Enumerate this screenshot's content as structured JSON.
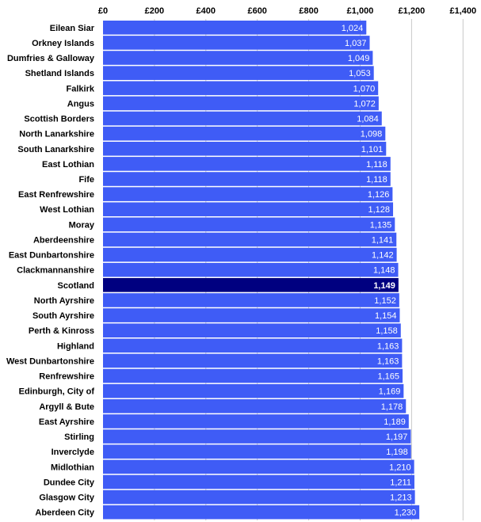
{
  "chart_data": {
    "type": "bar",
    "orientation": "horizontal",
    "title": "",
    "xlabel": "",
    "ylabel": "",
    "xlim": [
      0,
      1400
    ],
    "x_ticks": [
      0,
      200,
      400,
      600,
      800,
      1000,
      1200,
      1400
    ],
    "x_tick_labels": [
      "£0",
      "£200",
      "£400",
      "£600",
      "£800",
      "£1,000",
      "£1,200",
      "£1,400"
    ],
    "axis_position": "top",
    "grid": true,
    "legend": "none",
    "categories": [
      "Eilean Siar",
      "Orkney Islands",
      "Dumfries & Galloway",
      "Shetland Islands",
      "Falkirk",
      "Angus",
      "Scottish Borders",
      "North Lanarkshire",
      "South Lanarkshire",
      "East Lothian",
      "Fife",
      "East Renfrewshire",
      "West Lothian",
      "Moray",
      "Aberdeenshire",
      "East Dunbartonshire",
      "Clackmannanshire",
      "Scotland",
      "North Ayrshire",
      "South Ayrshire",
      "Perth & Kinross",
      "Highland",
      "West Dunbartonshire",
      "Renfrewshire",
      "Edinburgh, City of",
      "Argyll & Bute",
      "East Ayrshire",
      "Stirling",
      "Inverclyde",
      "Midlothian",
      "Dundee City",
      "Glasgow City",
      "Aberdeen City"
    ],
    "values": [
      1024,
      1037,
      1049,
      1053,
      1070,
      1072,
      1084,
      1098,
      1101,
      1118,
      1118,
      1126,
      1128,
      1135,
      1141,
      1142,
      1148,
      1149,
      1152,
      1154,
      1158,
      1163,
      1163,
      1165,
      1169,
      1178,
      1189,
      1197,
      1198,
      1210,
      1211,
      1213,
      1230
    ],
    "value_labels": [
      "1,024",
      "1,037",
      "1,049",
      "1,053",
      "1,070",
      "1,072",
      "1,084",
      "1,098",
      "1,101",
      "1,118",
      "1,118",
      "1,126",
      "1,128",
      "1,135",
      "1,141",
      "1,142",
      "1,148",
      "1,149",
      "1,152",
      "1,154",
      "1,158",
      "1,163",
      "1,163",
      "1,165",
      "1,169",
      "1,178",
      "1,189",
      "1,197",
      "1,198",
      "1,210",
      "1,211",
      "1,213",
      "1,230"
    ],
    "highlight": "Scotland",
    "colors": {
      "bar": "#3f5cf6",
      "highlight": "#000080",
      "grid": "#c8c8c8",
      "bar_text": "#ffffff"
    }
  }
}
